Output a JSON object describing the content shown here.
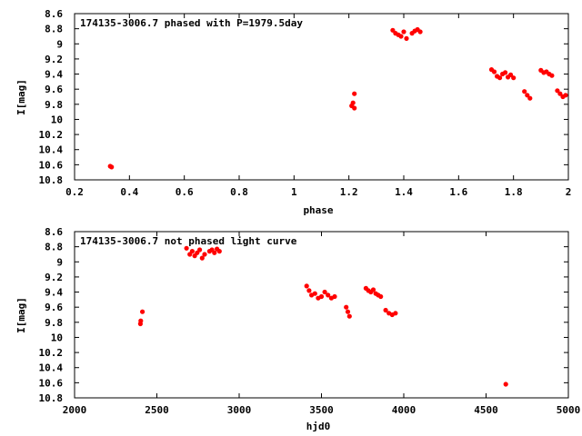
{
  "chart_data": [
    {
      "type": "scatter",
      "title": "174135-3006.7 phased with P=1979.5day",
      "xlabel": "phase",
      "ylabel": "I[mag]",
      "xlim": [
        0.2,
        2.0
      ],
      "ylim": [
        10.8,
        8.6
      ],
      "y_inverted": true,
      "x_ticks": [
        "0.2",
        "0.4",
        "0.6",
        "0.8",
        "1",
        "1.2",
        "1.4",
        "1.6",
        "1.8",
        "2"
      ],
      "y_ticks": [
        "8.6",
        "8.8",
        "9",
        "9.2",
        "9.4",
        "9.6",
        "9.8",
        "10",
        "10.2",
        "10.4",
        "10.6",
        "10.8"
      ],
      "marker_color": "#ff0000",
      "series": [
        {
          "x": [
            0.33,
            0.335,
            1.21,
            1.215,
            1.22,
            1.22,
            1.36,
            1.37,
            1.38,
            1.39,
            1.4,
            1.41,
            1.43,
            1.44,
            1.45,
            1.46,
            1.72,
            1.73,
            1.74,
            1.75,
            1.76,
            1.77,
            1.78,
            1.79,
            1.8,
            1.84,
            1.85,
            1.86,
            1.9,
            1.91,
            1.92,
            1.93,
            1.94,
            1.96,
            1.97,
            1.98,
            1.99
          ],
          "y": [
            10.62,
            10.63,
            9.82,
            9.78,
            9.85,
            9.66,
            8.82,
            8.86,
            8.88,
            8.9,
            8.84,
            8.93,
            8.86,
            8.83,
            8.81,
            8.84,
            9.34,
            9.37,
            9.43,
            9.45,
            9.4,
            9.38,
            9.44,
            9.41,
            9.45,
            9.63,
            9.68,
            9.72,
            9.35,
            9.38,
            9.37,
            9.4,
            9.42,
            9.62,
            9.66,
            9.7,
            9.68
          ]
        }
      ]
    },
    {
      "type": "scatter",
      "title": "174135-3006.7 not phased light curve",
      "xlabel": "hjd0",
      "ylabel": "I[mag]",
      "xlim": [
        2000,
        5000
      ],
      "ylim": [
        10.8,
        8.6
      ],
      "y_inverted": true,
      "x_ticks": [
        "2000",
        "2500",
        "3000",
        "3500",
        "4000",
        "4500",
        "5000"
      ],
      "y_ticks": [
        "8.6",
        "8.8",
        "9",
        "9.2",
        "9.4",
        "9.6",
        "9.8",
        "10",
        "10.2",
        "10.4",
        "10.6",
        "10.8"
      ],
      "marker_color": "#ff0000",
      "series": [
        {
          "x": [
            2400,
            2402,
            2412,
            2680,
            2700,
            2715,
            2730,
            2745,
            2760,
            2775,
            2790,
            2820,
            2835,
            2850,
            2865,
            2880,
            3410,
            3425,
            3440,
            3460,
            3480,
            3500,
            3520,
            3540,
            3560,
            3580,
            3650,
            3660,
            3670,
            3770,
            3785,
            3800,
            3815,
            3830,
            3845,
            3860,
            3890,
            3910,
            3930,
            3950
          ],
          "y": [
            9.82,
            9.78,
            9.66,
            8.82,
            8.9,
            8.86,
            8.92,
            8.88,
            8.84,
            8.95,
            8.9,
            8.86,
            8.84,
            8.88,
            8.83,
            8.86,
            9.32,
            9.38,
            9.44,
            9.42,
            9.48,
            9.46,
            9.4,
            9.44,
            9.48,
            9.46,
            9.6,
            9.66,
            9.72,
            9.35,
            9.38,
            9.4,
            9.37,
            9.42,
            9.44,
            9.46,
            9.64,
            9.68,
            9.7,
            9.68
          ]
        }
      ]
    },
    {
      "type": "scatter",
      "title": "",
      "xlabel": "",
      "ylabel": "",
      "xlim": [
        2000,
        5000
      ],
      "ylim": [
        10.8,
        8.6
      ],
      "series": [
        {
          "x": [
            4620
          ],
          "y": [
            10.62
          ]
        }
      ]
    }
  ]
}
